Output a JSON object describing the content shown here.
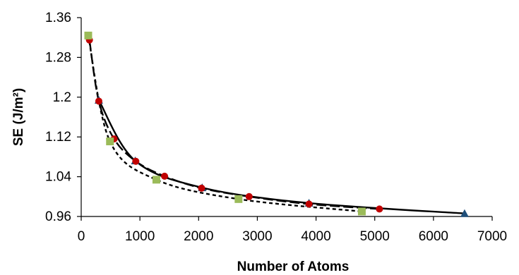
{
  "chart_data": {
    "type": "scatter",
    "title": "",
    "xlabel": "Number of Atoms",
    "ylabel": "SE (J/m²)",
    "xlim": [
      0,
      7000
    ],
    "ylim": [
      0.96,
      1.36
    ],
    "xticks": [
      0,
      1000,
      2000,
      3000,
      4000,
      5000,
      6000,
      7000
    ],
    "xtick_labels": [
      "0",
      "1000",
      "2000",
      "3000",
      "4000",
      "5000",
      "6000",
      "7000"
    ],
    "yticks": [
      0.96,
      1.04,
      1.12,
      1.2,
      1.28,
      1.36
    ],
    "ytick_labels": [
      "0.96",
      "1.04",
      "1.12",
      "1.2",
      "1.28",
      "1.36"
    ],
    "grid": false,
    "legend": "none",
    "series": [
      {
        "marker": "triangle",
        "color": "#1f4e79",
        "line_style": "solid",
        "x": [
          300,
          920,
          2060,
          3880,
          6530
        ],
        "y": [
          1.194,
          1.072,
          1.018,
          0.987,
          0.966
        ]
      },
      {
        "marker": "circle",
        "color": "#c00000",
        "line_style": "long-dash",
        "x": [
          140,
          300,
          560,
          930,
          1420,
          2050,
          2860,
          3880,
          5080
        ],
        "y": [
          1.315,
          1.192,
          1.116,
          1.071,
          1.041,
          1.017,
          1.0,
          0.985,
          0.975
        ]
      },
      {
        "marker": "square",
        "color": "#9bbb59",
        "line_style": "short-dash",
        "x": [
          120,
          490,
          1280,
          2680,
          4780
        ],
        "y": [
          1.324,
          1.111,
          1.034,
          0.995,
          0.97
        ]
      }
    ]
  }
}
